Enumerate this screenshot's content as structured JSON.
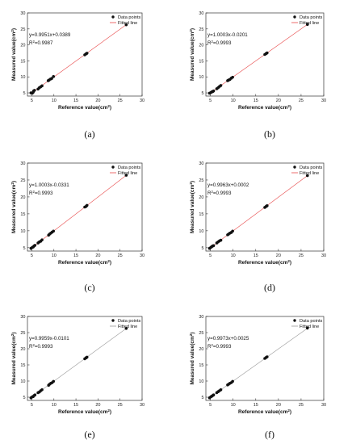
{
  "chart_data": [
    {
      "type": "scatter",
      "panel_label": "(a)",
      "equation": "y=0.9951x+0.0389",
      "r2_prefix": "R",
      "r2_sup": "2",
      "r2_value": "=0.9987",
      "xlabel": "Reference value(cm",
      "xlabel_sup": "2",
      "xlabel_suffix": ")",
      "ylabel": "Measured value(cm",
      "ylabel_sup": "2",
      "ylabel_suffix": ")",
      "xlim": [
        4,
        30
      ],
      "ylim": [
        4,
        30
      ],
      "xticks": [
        5,
        10,
        15,
        20,
        25,
        30
      ],
      "yticks": [
        5,
        10,
        15,
        20,
        25,
        30
      ],
      "fit": {
        "slope": 0.9951,
        "intercept": 0.0389,
        "color": "#e8494a"
      },
      "legend": {
        "position": "top-right",
        "points": "Data points",
        "line": "Fitted line"
      },
      "series": [
        {
          "name": "Data points",
          "x": [
            4.8,
            5.1,
            5.3,
            5.4,
            5.6,
            6.4,
            6.7,
            7.0,
            7.3,
            8.7,
            8.9,
            9.2,
            9.5,
            9.9,
            17.0,
            17.3,
            17.5,
            26.4
          ],
          "y": [
            5.0,
            4.9,
            5.2,
            5.6,
            5.8,
            6.2,
            6.6,
            6.9,
            7.2,
            8.8,
            9.0,
            9.3,
            9.5,
            10.1,
            16.9,
            17.2,
            17.4,
            26.3
          ]
        }
      ]
    },
    {
      "type": "scatter",
      "panel_label": "(b)",
      "equation": "y=1.0003x-0.0201",
      "r2_prefix": "R",
      "r2_sup": "2",
      "r2_value": "=0.9993",
      "xlabel": "Reference value(cm",
      "xlabel_sup": "2",
      "xlabel_suffix": ")",
      "ylabel": "Measured value(cm",
      "ylabel_sup": "2",
      "ylabel_suffix": ")",
      "xlim": [
        4,
        30
      ],
      "ylim": [
        4,
        30
      ],
      "xticks": [
        5,
        10,
        15,
        20,
        25,
        30
      ],
      "yticks": [
        5,
        10,
        15,
        20,
        25,
        30
      ],
      "fit": {
        "slope": 1.0003,
        "intercept": -0.0201,
        "color": "#e8494a"
      },
      "legend": {
        "position": "top-right",
        "points": "Data points",
        "line": "Fitted line"
      },
      "series": [
        {
          "name": "Data points",
          "x": [
            4.8,
            5.1,
            5.3,
            5.5,
            5.7,
            6.4,
            6.7,
            7.0,
            7.3,
            8.8,
            9.0,
            9.3,
            9.6,
            9.9,
            17.0,
            17.3,
            17.5,
            26.4
          ],
          "y": [
            4.9,
            5.1,
            5.3,
            5.4,
            5.6,
            6.3,
            6.6,
            7.0,
            7.3,
            8.8,
            9.0,
            9.2,
            9.6,
            9.9,
            17.0,
            17.3,
            17.5,
            26.4
          ]
        }
      ]
    },
    {
      "type": "scatter",
      "panel_label": "(c)",
      "equation": "y=1.0003x-0.0331",
      "r2_prefix": "R",
      "r2_sup": "2",
      "r2_value": "=0.9993",
      "xlabel": "Reference value(cm",
      "xlabel_sup": "2",
      "xlabel_suffix": ")",
      "ylabel": "Measured value(cm",
      "ylabel_sup": "2",
      "ylabel_suffix": ")",
      "xlim": [
        4,
        30
      ],
      "ylim": [
        4,
        30
      ],
      "xticks": [
        5,
        10,
        15,
        20,
        25,
        30
      ],
      "yticks": [
        5,
        10,
        15,
        20,
        25,
        30
      ],
      "fit": {
        "slope": 1.0003,
        "intercept": -0.0331,
        "color": "#e8494a"
      },
      "legend": {
        "position": "top-right",
        "points": "Data points",
        "line": "Fitted line"
      },
      "series": [
        {
          "name": "Data points",
          "x": [
            4.8,
            5.1,
            5.3,
            5.5,
            5.7,
            6.4,
            6.7,
            7.0,
            7.3,
            8.8,
            9.0,
            9.3,
            9.6,
            9.9,
            17.0,
            17.3,
            17.5,
            26.4
          ],
          "y": [
            4.8,
            5.1,
            5.2,
            5.5,
            5.7,
            6.4,
            6.7,
            6.9,
            7.3,
            8.7,
            9.0,
            9.3,
            9.6,
            9.9,
            17.0,
            17.2,
            17.5,
            26.4
          ]
        }
      ]
    },
    {
      "type": "scatter",
      "panel_label": "(d)",
      "equation": "y=0.9963x+0.0002",
      "r2_prefix": "R",
      "r2_sup": "2",
      "r2_value": "=0.9993",
      "xlabel": "Reference value(cm",
      "xlabel_sup": "2",
      "xlabel_suffix": ")",
      "ylabel": "Measured value(cm",
      "ylabel_sup": "2",
      "ylabel_suffix": ")",
      "xlim": [
        4,
        30
      ],
      "ylim": [
        4,
        30
      ],
      "xticks": [
        5,
        10,
        15,
        20,
        25,
        30
      ],
      "yticks": [
        5,
        10,
        15,
        20,
        25,
        30
      ],
      "fit": {
        "slope": 0.9963,
        "intercept": 0.0002,
        "color": "#e8494a"
      },
      "legend": {
        "position": "top-right",
        "points": "Data points",
        "line": "Fitted line"
      },
      "series": [
        {
          "name": "Data points",
          "x": [
            4.8,
            5.1,
            5.3,
            5.5,
            5.7,
            6.4,
            6.7,
            7.0,
            7.3,
            8.8,
            9.0,
            9.3,
            9.6,
            9.9,
            17.0,
            17.3,
            17.5,
            26.4
          ],
          "y": [
            4.8,
            5.1,
            5.3,
            5.5,
            5.6,
            6.4,
            6.7,
            7.0,
            7.2,
            8.8,
            9.0,
            9.3,
            9.5,
            9.9,
            16.9,
            17.2,
            17.4,
            26.3
          ]
        }
      ]
    },
    {
      "type": "scatter",
      "panel_label": "(e)",
      "equation": "y=0.9959x-0.0101",
      "r2_prefix": "R",
      "r2_sup": "2",
      "r2_value": "=0.9993",
      "xlabel": "Reference value(cm",
      "xlabel_sup": "2",
      "xlabel_suffix": ")",
      "ylabel": "Measured value(cm",
      "ylabel_sup": "2",
      "ylabel_suffix": ")",
      "xlim": [
        4,
        30
      ],
      "ylim": [
        4,
        30
      ],
      "xticks": [
        5,
        10,
        15,
        20,
        25,
        30
      ],
      "yticks": [
        5,
        10,
        15,
        20,
        25,
        30
      ],
      "fit": {
        "slope": 0.9959,
        "intercept": -0.0101,
        "color": "#9a9a9a"
      },
      "legend": {
        "position": "top-right",
        "points": "Data points",
        "line": "Fitted line"
      },
      "series": [
        {
          "name": "Data points",
          "x": [
            4.8,
            5.1,
            5.3,
            5.5,
            5.7,
            6.4,
            6.7,
            7.0,
            7.3,
            8.8,
            9.0,
            9.3,
            9.6,
            9.9,
            17.0,
            17.3,
            17.5,
            26.4
          ],
          "y": [
            4.8,
            5.1,
            5.2,
            5.5,
            5.7,
            6.4,
            6.6,
            7.0,
            7.3,
            8.7,
            9.0,
            9.3,
            9.5,
            9.9,
            16.9,
            17.2,
            17.4,
            26.3
          ]
        }
      ]
    },
    {
      "type": "scatter",
      "panel_label": "(f)",
      "equation": "y=0.9973x+0.0025",
      "r2_prefix": "R",
      "r2_sup": "2",
      "r2_value": "=0.9993",
      "xlabel": "Reference value(cm",
      "xlabel_sup": "2",
      "xlabel_suffix": ")",
      "ylabel": "Measured value(cm",
      "ylabel_sup": "2",
      "ylabel_suffix": ")",
      "xlim": [
        4,
        30
      ],
      "ylim": [
        4,
        30
      ],
      "xticks": [
        5,
        10,
        15,
        20,
        25,
        30
      ],
      "yticks": [
        5,
        10,
        15,
        20,
        25,
        30
      ],
      "fit": {
        "slope": 0.9973,
        "intercept": 0.0025,
        "color": "#9a9a9a"
      },
      "legend": {
        "position": "top-right",
        "points": "Data points",
        "line": "Fitted line"
      },
      "series": [
        {
          "name": "Data points",
          "x": [
            4.8,
            5.1,
            5.3,
            5.5,
            5.7,
            6.4,
            6.7,
            7.0,
            7.3,
            8.8,
            9.0,
            9.3,
            9.6,
            9.9,
            17.0,
            17.3,
            17.5,
            26.4
          ],
          "y": [
            4.8,
            5.1,
            5.3,
            5.5,
            5.7,
            6.4,
            6.7,
            7.0,
            7.3,
            8.8,
            9.0,
            9.3,
            9.5,
            9.9,
            17.0,
            17.3,
            17.5,
            26.4
          ]
        }
      ]
    }
  ]
}
